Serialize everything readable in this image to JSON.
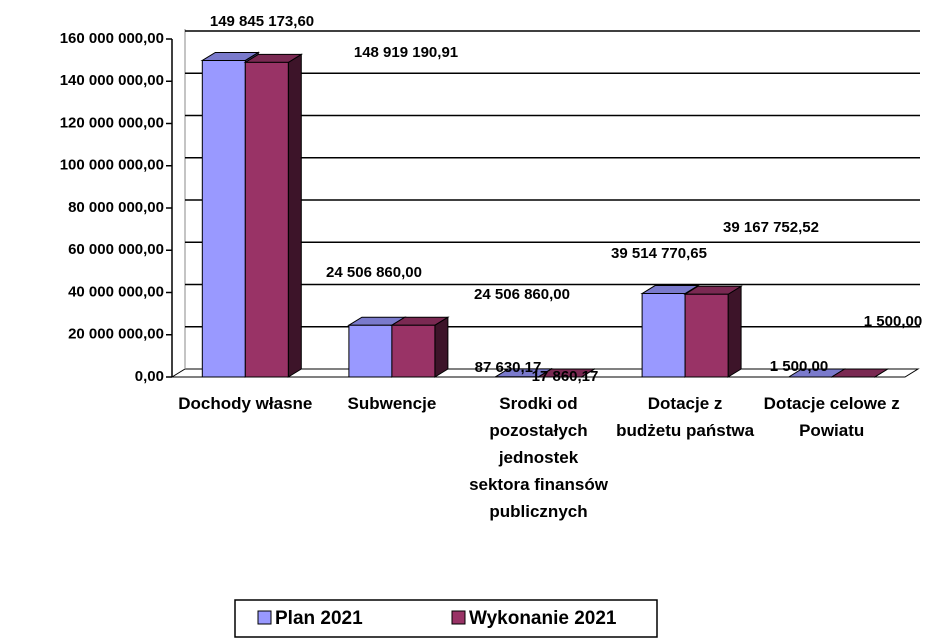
{
  "chart_data": {
    "type": "bar3d",
    "categories": [
      "Dochody własne",
      "Subwencje",
      "Srodki od pozostałych jednostek sektora finansów publicznych",
      "Dotacje z budżetu państwa",
      "Dotacje celowe z Powiatu"
    ],
    "series": [
      {
        "name": "Plan 2021",
        "color": "#9999ff",
        "values": [
          149845173.6,
          24506860.0,
          87630.17,
          39514770.65,
          1500.0
        ],
        "value_labels": [
          "149 845 173,60",
          "24 506 860,00",
          "87 630,17",
          "39 514 770,65",
          "1 500,00"
        ]
      },
      {
        "name": "Wykonanie 2021",
        "color": "#993366",
        "values": [
          148919190.91,
          24506860.0,
          17860.17,
          39167752.52,
          1500.0
        ],
        "value_labels": [
          "148 919 190,91",
          "24 506 860,00",
          "17 860,17",
          "39 167 752,52",
          "1 500,00"
        ]
      }
    ],
    "ylim": [
      0,
      160000000
    ],
    "yticks": [
      {
        "value": 0,
        "label": "0,00"
      },
      {
        "value": 20000000,
        "label": "20 000 000,00"
      },
      {
        "value": 40000000,
        "label": "40 000 000,00"
      },
      {
        "value": 60000000,
        "label": "60 000 000,00"
      },
      {
        "value": 80000000,
        "label": "80 000 000,00"
      },
      {
        "value": 100000000,
        "label": "100 000 000,00"
      },
      {
        "value": 120000000,
        "label": "120 000 000,00"
      },
      {
        "value": 140000000,
        "label": "140 000 000,00"
      },
      {
        "value": 160000000,
        "label": "160 000 000,00"
      }
    ],
    "grid": true,
    "legend": "bottom"
  }
}
